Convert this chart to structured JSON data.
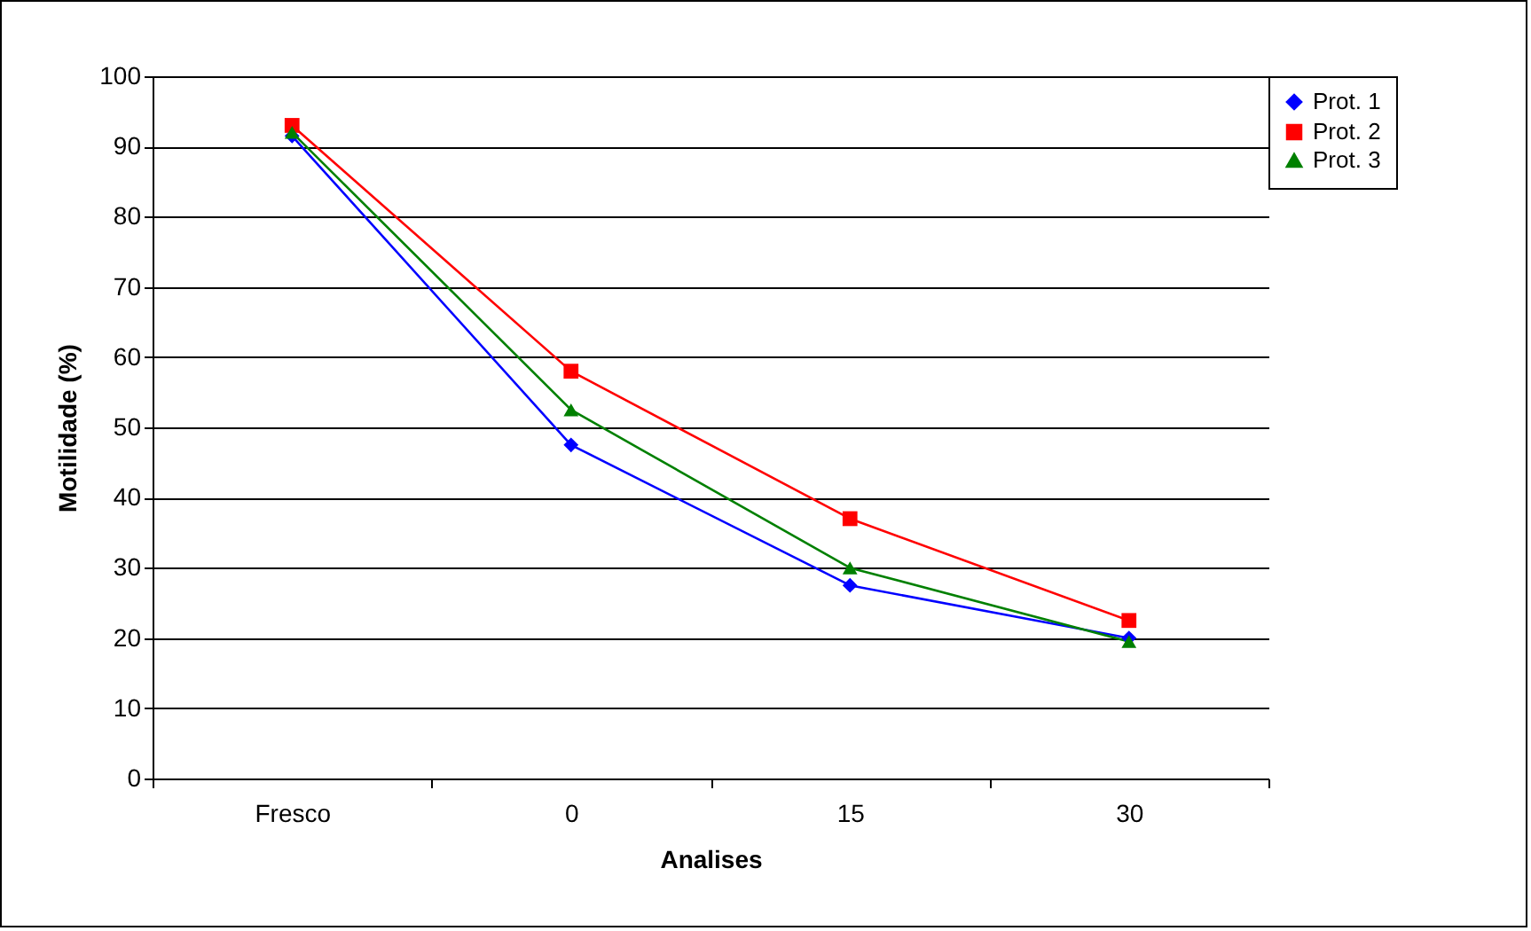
{
  "chart_data": {
    "type": "line",
    "xlabel": "Analises",
    "ylabel": "Motilidade (%)",
    "categories": [
      "Fresco",
      "0",
      "15",
      "30"
    ],
    "series": [
      {
        "name": "Prot. 1",
        "color": "#0000ff",
        "marker": "diamond",
        "values": [
          91.5,
          47.5,
          27.5,
          20
        ]
      },
      {
        "name": "Prot. 2",
        "color": "#ff0000",
        "marker": "square",
        "values": [
          93,
          58,
          37,
          22.5
        ]
      },
      {
        "name": "Prot. 3",
        "color": "#008000",
        "marker": "triangle",
        "values": [
          92,
          52.5,
          30,
          19.5
        ]
      }
    ],
    "ylim": [
      0,
      100
    ],
    "yticks": [
      0,
      10,
      20,
      30,
      40,
      50,
      60,
      70,
      80,
      90,
      100
    ],
    "grid": "y",
    "legend": "right",
    "line_style": "solid"
  }
}
